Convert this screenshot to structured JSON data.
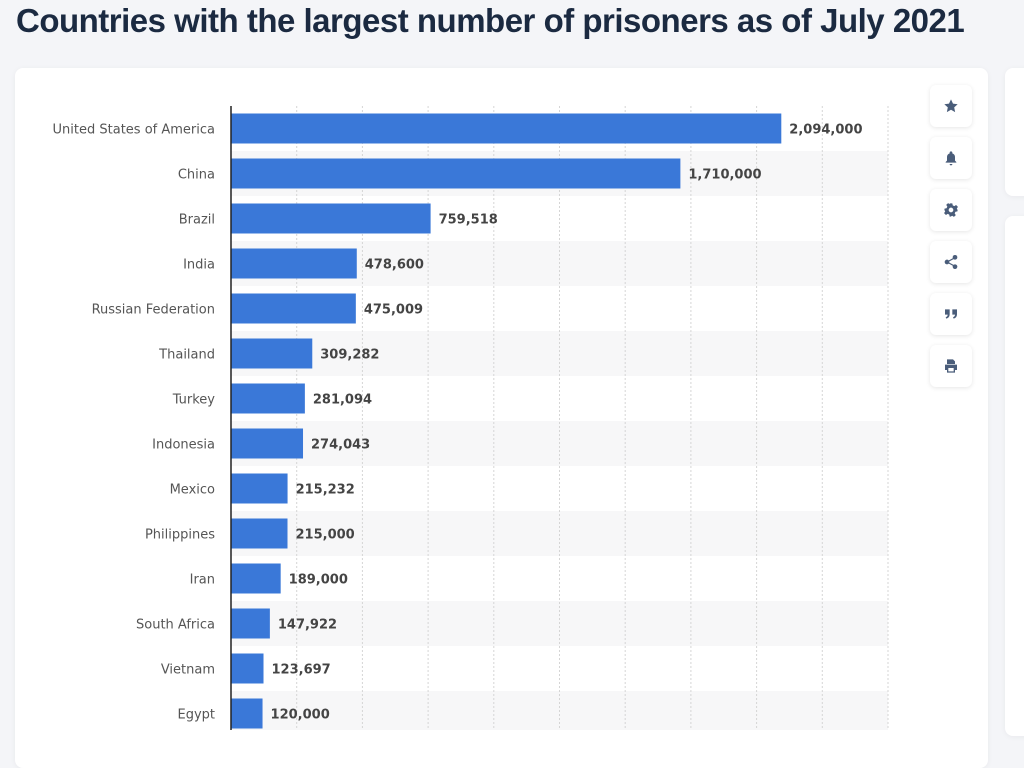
{
  "title": "Countries with the largest number of prisoners as of July 2021",
  "toolbar": [
    {
      "name": "star-icon"
    },
    {
      "name": "bell-icon"
    },
    {
      "name": "gear-icon"
    },
    {
      "name": "share-icon"
    },
    {
      "name": "quote-icon"
    },
    {
      "name": "print-icon"
    }
  ],
  "colors": {
    "bar": "#3a78d8",
    "stripe": "#f7f7f8",
    "icon": "#4a5d7a",
    "title": "#1b2a41"
  },
  "chart_data": {
    "type": "bar",
    "orientation": "horizontal",
    "categories": [
      "United States of America",
      "China",
      "Brazil",
      "India",
      "Russian Federation",
      "Thailand",
      "Turkey",
      "Indonesia",
      "Mexico",
      "Philippines",
      "Iran",
      "South Africa",
      "Vietnam",
      "Egypt"
    ],
    "values": [
      2094000,
      1710000,
      759518,
      478600,
      475009,
      309282,
      281094,
      274043,
      215232,
      215000,
      189000,
      147922,
      123697,
      120000
    ],
    "value_labels": [
      "2,094,000",
      "1,710,000",
      "759,518",
      "478,600",
      "475,009",
      "309,282",
      "281,094",
      "274,043",
      "215,232",
      "215,000",
      "189,000",
      "147,922",
      "123,697",
      "120,000"
    ],
    "xlim": [
      0,
      2500000
    ],
    "grid_step": 250000,
    "grid": true,
    "title": "Countries with the largest number of prisoners as of July 2021"
  }
}
